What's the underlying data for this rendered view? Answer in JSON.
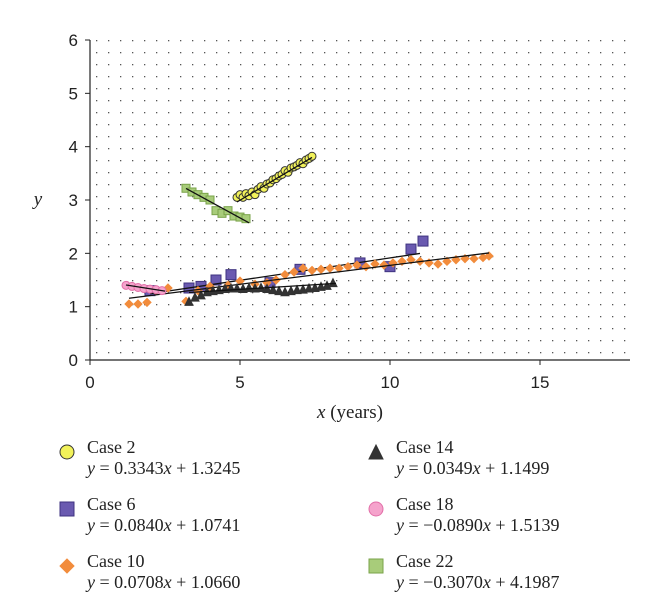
{
  "chart_data": {
    "type": "scatter",
    "xlabel_var": "x",
    "xlabel_unit": "(years)",
    "ylabel": "y",
    "xlim": [
      0,
      18
    ],
    "ylim": [
      0,
      6
    ],
    "x_ticks": [
      0,
      5,
      10,
      15
    ],
    "y_ticks": [
      0,
      1,
      2,
      3,
      4,
      5,
      6
    ],
    "grid": "dotted",
    "legend_position": "bottom",
    "series": [
      {
        "name": "Case 2",
        "equation": "y = 0.3343x + 1.3245",
        "marker": "circle",
        "fill": "#f2f25a",
        "stroke": "#333333",
        "slope": 0.3343,
        "intercept": 1.3245,
        "fit_range": [
          4.9,
          7.4
        ],
        "x": [
          4.9,
          5.0,
          5.1,
          5.2,
          5.3,
          5.4,
          5.5,
          5.6,
          5.7,
          5.8,
          5.9,
          6.0,
          6.1,
          6.2,
          6.3,
          6.4,
          6.5,
          6.6,
          6.7,
          6.8,
          6.9,
          7.0,
          7.1,
          7.2,
          7.3,
          7.4
        ],
        "y": [
          3.05,
          3.1,
          3.05,
          3.12,
          3.08,
          3.15,
          3.1,
          3.2,
          3.25,
          3.22,
          3.3,
          3.32,
          3.38,
          3.4,
          3.45,
          3.48,
          3.55,
          3.52,
          3.6,
          3.62,
          3.65,
          3.7,
          3.68,
          3.75,
          3.78,
          3.82
        ]
      },
      {
        "name": "Case 6",
        "equation": "y = 0.0840x + 1.0741",
        "marker": "square",
        "fill": "#6a5ab0",
        "stroke": "#3f3380",
        "slope": 0.084,
        "intercept": 1.0741,
        "fit_range": [
          2.0,
          11.0
        ],
        "x": [
          2.0,
          3.3,
          3.7,
          4.2,
          4.7,
          6.0,
          7.0,
          9.0,
          10.0,
          10.7,
          11.1
        ],
        "y": [
          1.3,
          1.35,
          1.38,
          1.5,
          1.6,
          1.45,
          1.7,
          1.82,
          1.75,
          2.08,
          2.23
        ]
      },
      {
        "name": "Case 10",
        "equation": "y = 0.0708x + 1.0660",
        "marker": "diamond",
        "fill": "#f28c3c",
        "stroke": "#f28c3c",
        "slope": 0.0708,
        "intercept": 1.066,
        "fit_range": [
          1.3,
          13.3
        ],
        "x": [
          1.3,
          1.6,
          1.9,
          2.2,
          2.6,
          3.2,
          3.6,
          4.0,
          4.6,
          5.0,
          5.5,
          5.9,
          6.2,
          6.5,
          6.8,
          7.1,
          7.4,
          7.7,
          8.0,
          8.3,
          8.6,
          8.9,
          9.2,
          9.5,
          9.8,
          10.1,
          10.4,
          10.7,
          11.0,
          11.3,
          11.6,
          11.9,
          12.2,
          12.5,
          12.8,
          13.1,
          13.3
        ],
        "y": [
          1.05,
          1.05,
          1.08,
          1.3,
          1.35,
          1.1,
          1.3,
          1.38,
          1.4,
          1.48,
          1.42,
          1.45,
          1.5,
          1.6,
          1.65,
          1.72,
          1.68,
          1.7,
          1.72,
          1.72,
          1.75,
          1.78,
          1.75,
          1.8,
          1.78,
          1.82,
          1.85,
          1.88,
          1.85,
          1.82,
          1.8,
          1.85,
          1.88,
          1.9,
          1.9,
          1.92,
          1.95
        ]
      },
      {
        "name": "Case 14",
        "equation": "y = 0.0349x + 1.1499",
        "marker": "triangle",
        "fill": "#333333",
        "stroke": "#333333",
        "slope": 0.0349,
        "intercept": 1.1499,
        "fit_range": [
          3.3,
          8.2
        ],
        "x": [
          3.3,
          3.5,
          3.7,
          3.9,
          4.1,
          4.3,
          4.5,
          4.7,
          4.9,
          5.1,
          5.3,
          5.5,
          5.7,
          5.9,
          6.1,
          6.3,
          6.5,
          6.7,
          6.9,
          7.1,
          7.3,
          7.5,
          7.7,
          7.9,
          8.1
        ],
        "y": [
          1.1,
          1.18,
          1.22,
          1.28,
          1.3,
          1.32,
          1.34,
          1.35,
          1.35,
          1.34,
          1.36,
          1.35,
          1.36,
          1.34,
          1.32,
          1.3,
          1.28,
          1.3,
          1.32,
          1.33,
          1.35,
          1.36,
          1.38,
          1.4,
          1.45
        ]
      },
      {
        "name": "Case 18",
        "equation": "y = −0.0890x + 1.5139",
        "marker": "circle",
        "fill": "#f5a3cc",
        "stroke": "#e26fa8",
        "slope": -0.089,
        "intercept": 1.5139,
        "fit_range": [
          1.2,
          2.5
        ],
        "x": [
          1.2,
          1.4,
          1.6,
          1.8,
          2.0,
          2.2,
          2.4
        ],
        "y": [
          1.4,
          1.38,
          1.36,
          1.34,
          1.33,
          1.32,
          1.3
        ]
      },
      {
        "name": "Case 22",
        "equation": "y = −0.3070x + 4.1987",
        "marker": "square",
        "fill": "#a8cc7a",
        "stroke": "#7aa34a",
        "slope": -0.307,
        "intercept": 4.1987,
        "fit_range": [
          3.2,
          5.3
        ],
        "x": [
          3.2,
          3.4,
          3.6,
          3.8,
          4.0,
          4.2,
          4.4,
          4.6,
          4.8,
          5.0,
          5.2
        ],
        "y": [
          3.22,
          3.15,
          3.1,
          3.05,
          3.0,
          2.8,
          2.75,
          2.8,
          2.7,
          2.68,
          2.65
        ]
      }
    ]
  }
}
